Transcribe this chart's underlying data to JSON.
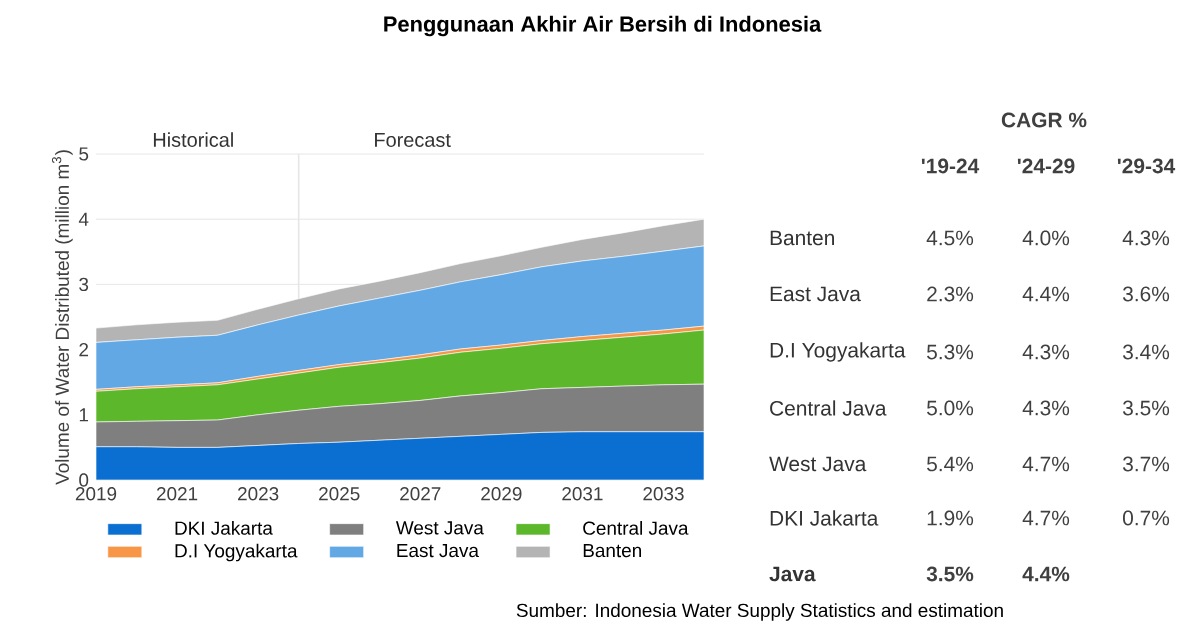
{
  "chart_data": [
    {
      "type": "area",
      "stacked": true,
      "title": "Penggunaan Akhir Air Bersih di Indonesia",
      "ylabel": "Volume of Water Distributed (million m$^{3}$)",
      "x": [
        2019,
        2020,
        2021,
        2022,
        2023,
        2024,
        2025,
        2026,
        2027,
        2028,
        2029,
        2030,
        2031,
        2032,
        2033,
        2034
      ],
      "xlim": [
        2019,
        2034
      ],
      "xticks": [
        2019,
        2021,
        2023,
        2025,
        2027,
        2029,
        2031,
        2033
      ],
      "ylim": [
        0,
        5
      ],
      "yticks": [
        0,
        1,
        2,
        3,
        4,
        5
      ],
      "grid": "y",
      "legend": "bottom",
      "ref_lines": [
        {
          "axis": "x",
          "value": 2024,
          "color": "#e6e6e6"
        }
      ],
      "annotations": [
        "Historical",
        "Forecast",
        "Sumber: Indonesia Water Supply Statistics and estimation"
      ],
      "series": [
        {
          "name": "DKI Jakarta",
          "color": "#0a6fd0",
          "values": [
            0.51,
            0.51,
            0.5,
            0.5,
            0.53,
            0.56,
            0.58,
            0.61,
            0.64,
            0.67,
            0.7,
            0.73,
            0.74,
            0.74,
            0.74,
            0.74
          ]
        },
        {
          "name": "West Java",
          "color": "#7f7f7f",
          "values": [
            0.38,
            0.39,
            0.41,
            0.42,
            0.47,
            0.51,
            0.55,
            0.56,
            0.58,
            0.62,
            0.64,
            0.67,
            0.68,
            0.7,
            0.72,
            0.73
          ]
        },
        {
          "name": "Central Java",
          "color": "#5cb82a",
          "values": [
            0.47,
            0.5,
            0.52,
            0.54,
            0.55,
            0.57,
            0.6,
            0.63,
            0.65,
            0.67,
            0.68,
            0.69,
            0.72,
            0.75,
            0.78,
            0.83
          ]
        },
        {
          "name": "D.I Yogyakarta",
          "color": "#f79646",
          "values": [
            0.03,
            0.03,
            0.03,
            0.03,
            0.04,
            0.04,
            0.04,
            0.04,
            0.05,
            0.05,
            0.05,
            0.05,
            0.06,
            0.06,
            0.06,
            0.06
          ]
        },
        {
          "name": "East Java",
          "color": "#62a8e5",
          "values": [
            0.72,
            0.72,
            0.73,
            0.73,
            0.79,
            0.85,
            0.9,
            0.95,
            0.99,
            1.03,
            1.08,
            1.13,
            1.16,
            1.18,
            1.21,
            1.23
          ]
        },
        {
          "name": "Banten",
          "color": "#b4b4b4",
          "values": [
            0.22,
            0.23,
            0.23,
            0.23,
            0.24,
            0.25,
            0.26,
            0.26,
            0.27,
            0.28,
            0.29,
            0.3,
            0.33,
            0.36,
            0.39,
            0.41
          ]
        }
      ]
    },
    {
      "type": "other",
      "title": "CAGR %",
      "categories": [
        "'19-24",
        "'24-29",
        "'29-34"
      ],
      "y_categories": [
        "Banten",
        "East Java",
        "D.I Yogyakarta",
        "Central Java",
        "West Java",
        "DKI Jakarta",
        "**Java**"
      ],
      "cell_labels": [
        [
          "4.5%",
          "4.0%",
          "4.3%"
        ],
        [
          "2.3%",
          "4.4%",
          "3.6%"
        ],
        [
          "5.3%",
          "4.3%",
          "3.4%"
        ],
        [
          "5.0%",
          "4.3%",
          "3.5%"
        ],
        [
          "5.4%",
          "4.7%",
          "3.7%"
        ],
        [
          "1.9%",
          "4.7%",
          "0.7%"
        ],
        [
          "**3.5%**",
          "**4.4%**",
          null
        ]
      ]
    }
  ]
}
